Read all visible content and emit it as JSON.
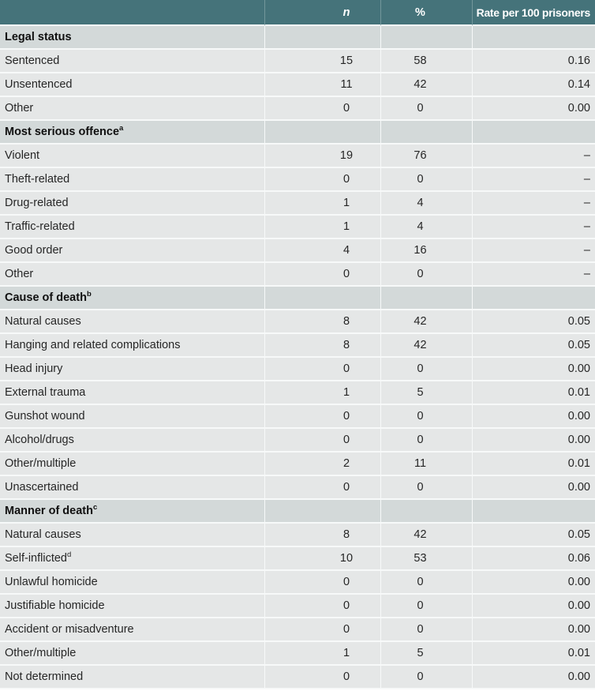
{
  "colors": {
    "header_bg": "#45737a",
    "header_text": "#ffffff",
    "section_bg": "#d3d9d9",
    "row_bg": "#e5e7e7",
    "separator": "#f7f9f9",
    "body_text": "#262626"
  },
  "chart_data": {
    "type": "table",
    "columns": [
      "",
      "n",
      "%",
      "Rate per 100 prisoners"
    ],
    "sections": [
      {
        "label": "Legal status",
        "sup": "",
        "rows": [
          {
            "label": "Sentenced",
            "sup": "",
            "n": "15",
            "pct": "58",
            "rate": "0.16"
          },
          {
            "label": "Unsentenced",
            "sup": "",
            "n": "11",
            "pct": "42",
            "rate": "0.14"
          },
          {
            "label": "Other",
            "sup": "",
            "n": "0",
            "pct": "0",
            "rate": "0.00"
          }
        ]
      },
      {
        "label": "Most serious offence",
        "sup": "a",
        "rows": [
          {
            "label": "Violent",
            "sup": "",
            "n": "19",
            "pct": "76",
            "rate": "–"
          },
          {
            "label": "Theft-related",
            "sup": "",
            "n": "0",
            "pct": "0",
            "rate": "–"
          },
          {
            "label": "Drug-related",
            "sup": "",
            "n": "1",
            "pct": "4",
            "rate": "–"
          },
          {
            "label": "Traffic-related",
            "sup": "",
            "n": "1",
            "pct": "4",
            "rate": "–"
          },
          {
            "label": "Good order",
            "sup": "",
            "n": "4",
            "pct": "16",
            "rate": "–"
          },
          {
            "label": "Other",
            "sup": "",
            "n": "0",
            "pct": "0",
            "rate": "–"
          }
        ]
      },
      {
        "label": "Cause of death",
        "sup": "b",
        "rows": [
          {
            "label": "Natural causes",
            "sup": "",
            "n": "8",
            "pct": "42",
            "rate": "0.05"
          },
          {
            "label": "Hanging and related complications",
            "sup": "",
            "n": "8",
            "pct": "42",
            "rate": "0.05"
          },
          {
            "label": "Head injury",
            "sup": "",
            "n": "0",
            "pct": "0",
            "rate": "0.00"
          },
          {
            "label": "External trauma",
            "sup": "",
            "n": "1",
            "pct": "5",
            "rate": "0.01"
          },
          {
            "label": "Gunshot wound",
            "sup": "",
            "n": "0",
            "pct": "0",
            "rate": "0.00"
          },
          {
            "label": "Alcohol/drugs",
            "sup": "",
            "n": "0",
            "pct": "0",
            "rate": "0.00"
          },
          {
            "label": "Other/multiple",
            "sup": "",
            "n": "2",
            "pct": "11",
            "rate": "0.01"
          },
          {
            "label": "Unascertained",
            "sup": "",
            "n": "0",
            "pct": "0",
            "rate": "0.00"
          }
        ]
      },
      {
        "label": "Manner of death",
        "sup": "c",
        "rows": [
          {
            "label": "Natural causes",
            "sup": "",
            "n": "8",
            "pct": "42",
            "rate": "0.05"
          },
          {
            "label": "Self-inflicted",
            "sup": "d",
            "n": "10",
            "pct": "53",
            "rate": "0.06"
          },
          {
            "label": "Unlawful homicide",
            "sup": "",
            "n": "0",
            "pct": "0",
            "rate": "0.00"
          },
          {
            "label": "Justifiable homicide",
            "sup": "",
            "n": "0",
            "pct": "0",
            "rate": "0.00"
          },
          {
            "label": "Accident or misadventure",
            "sup": "",
            "n": "0",
            "pct": "0",
            "rate": "0.00"
          },
          {
            "label": "Other/multiple",
            "sup": "",
            "n": "1",
            "pct": "5",
            "rate": "0.01"
          },
          {
            "label": "Not determined",
            "sup": "",
            "n": "0",
            "pct": "0",
            "rate": "0.00"
          }
        ]
      }
    ]
  }
}
